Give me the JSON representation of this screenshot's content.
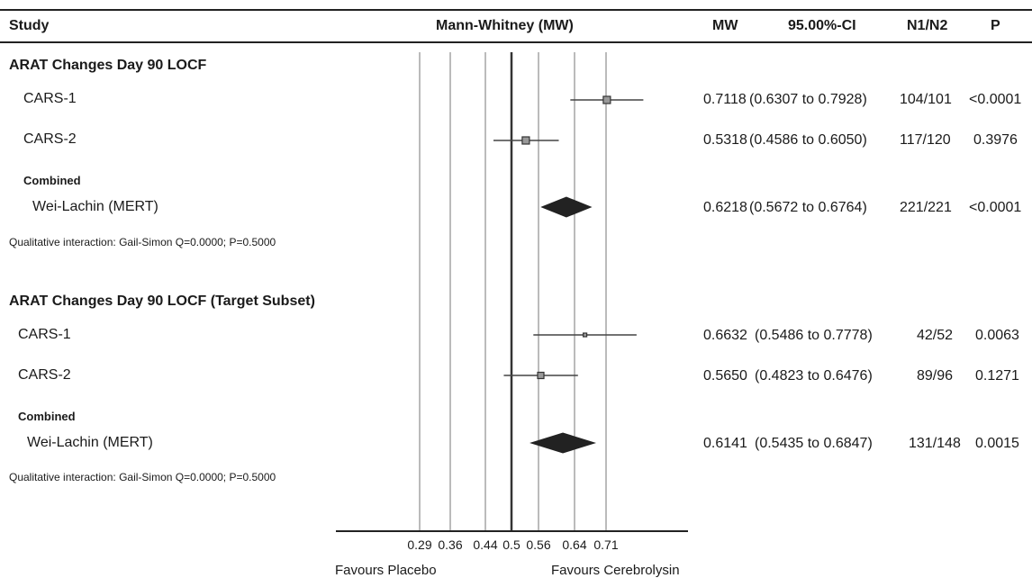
{
  "header": {
    "study": "Study",
    "measure": "Mann-Whitney (MW)",
    "mw": "MW",
    "ci": "95.00%-CI",
    "n": "N1/N2",
    "p": "P"
  },
  "sections": [
    {
      "title": "ARAT Changes Day 90 LOCF",
      "rows": [
        {
          "label": "CARS-1",
          "mw": "0.7118",
          "ci": "(0.6307 to 0.7928)",
          "n": "104/101",
          "p": "<0.0001"
        },
        {
          "label": "CARS-2",
          "mw": "0.5318",
          "ci": "(0.4586 to 0.6050)",
          "n": "117/120",
          "p": "0.3976"
        }
      ],
      "combined_label": "Combined",
      "combined": {
        "label": "Wei-Lachin (MERT)",
        "mw": "0.6218",
        "ci": "(0.5672 to 0.6764)",
        "n": "221/221",
        "p": "<0.0001"
      },
      "note": "Qualitative interaction: Gail-Simon Q=0.0000; P=0.5000"
    },
    {
      "title": "ARAT Changes Day 90 LOCF (Target Subset)",
      "rows": [
        {
          "label": "CARS-1",
          "mw": "0.6632",
          "ci": "(0.5486 to 0.7778)",
          "n": "42/52",
          "p": "0.0063"
        },
        {
          "label": "CARS-2",
          "mw": "0.5650",
          "ci": "(0.4823 to 0.6476)",
          "n": "89/96",
          "p": "0.1271"
        }
      ],
      "combined_label": "Combined",
      "combined": {
        "label": "Wei-Lachin (MERT)",
        "mw": "0.6141",
        "ci": "(0.5435 to 0.6847)",
        "n": "131/148",
        "p": "0.0015"
      },
      "note": "Qualitative interaction: Gail-Simon Q=0.0000; P=0.5000"
    }
  ],
  "axis": {
    "ticks": [
      "0.29",
      "0.36",
      "0.44",
      "0.5",
      "0.56",
      "0.64",
      "0.71"
    ],
    "left_label": "Favours Placebo",
    "right_label": "Favours Cerebrolysin"
  },
  "chart_data": {
    "type": "forest",
    "measure": "Mann-Whitney (MW)",
    "reference_line": 0.5,
    "x_ticks": [
      0.29,
      0.36,
      0.44,
      0.5,
      0.56,
      0.64,
      0.71
    ],
    "studies": [
      {
        "section": "ARAT Changes Day 90 LOCF",
        "name": "CARS-1",
        "estimate": 0.7118,
        "lower": 0.6307,
        "upper": 0.7928,
        "kind": "study",
        "weight": "large"
      },
      {
        "section": "ARAT Changes Day 90 LOCF",
        "name": "CARS-2",
        "estimate": 0.5318,
        "lower": 0.4586,
        "upper": 0.605,
        "kind": "study",
        "weight": "large"
      },
      {
        "section": "ARAT Changes Day 90 LOCF",
        "name": "Wei-Lachin (MERT)",
        "estimate": 0.6218,
        "lower": 0.5672,
        "upper": 0.6764,
        "kind": "combined"
      },
      {
        "section": "ARAT Changes Day 90 LOCF (Target Subset)",
        "name": "CARS-1",
        "estimate": 0.6632,
        "lower": 0.5486,
        "upper": 0.7778,
        "kind": "study",
        "weight": "small"
      },
      {
        "section": "ARAT Changes Day 90 LOCF (Target Subset)",
        "name": "CARS-2",
        "estimate": 0.565,
        "lower": 0.4823,
        "upper": 0.6476,
        "kind": "study",
        "weight": "medium"
      },
      {
        "section": "ARAT Changes Day 90 LOCF (Target Subset)",
        "name": "Wei-Lachin (MERT)",
        "estimate": 0.6141,
        "lower": 0.5435,
        "upper": 0.6847,
        "kind": "combined"
      }
    ]
  }
}
